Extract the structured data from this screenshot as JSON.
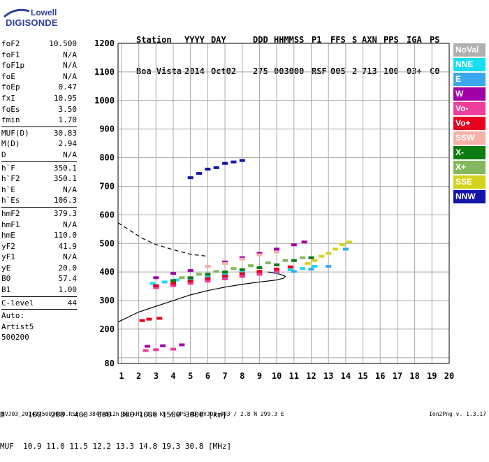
{
  "logo": {
    "line1": "Lowell",
    "line2": "DIGISONDE"
  },
  "header": {
    "labels": [
      "Station",
      "YYYY",
      "DAY",
      "DDD",
      "HHMMSS",
      "P1",
      "FFS",
      "S",
      "AXN",
      "PPS",
      "IGA",
      "PS"
    ],
    "values": [
      "Boa Vista",
      "2014",
      "Oct02",
      "275",
      "003000",
      "RSF",
      "005",
      "2",
      "713",
      "100",
      "03+",
      "C0"
    ]
  },
  "params": {
    "group1": [
      {
        "name": "foF2",
        "value": "10.500"
      },
      {
        "name": "foF1",
        "value": "N/A"
      },
      {
        "name": "foF1p",
        "value": "N/A"
      },
      {
        "name": "foE",
        "value": "N/A"
      },
      {
        "name": "foEp",
        "value": "0.47"
      },
      {
        "name": "fxI",
        "value": "10.95"
      },
      {
        "name": "foEs",
        "value": "3.50"
      },
      {
        "name": "fmin",
        "value": "1.70"
      }
    ],
    "group2": [
      {
        "name": "MUF(D)",
        "value": "30.83"
      },
      {
        "name": "M(D)",
        "value": "2.94"
      },
      {
        "name": "D",
        "value": "N/A"
      }
    ],
    "group3": [
      {
        "name": "h`F",
        "value": "350.1"
      },
      {
        "name": "h`F2",
        "value": "350.1"
      },
      {
        "name": "h`E",
        "value": "N/A"
      },
      {
        "name": "h`Es",
        "value": "106.3"
      }
    ],
    "group4": [
      {
        "name": "hmF2",
        "value": "379.3"
      },
      {
        "name": "hmF1",
        "value": "N/A"
      },
      {
        "name": "hmE",
        "value": "110.0"
      },
      {
        "name": "yF2",
        "value": "41.9"
      },
      {
        "name": "yF1",
        "value": "N/A"
      },
      {
        "name": "yE",
        "value": "20.0"
      },
      {
        "name": "B0",
        "value": "57.4"
      },
      {
        "name": "B1",
        "value": "1.00"
      }
    ],
    "group5": [
      {
        "name": "C-level",
        "value": "44"
      }
    ],
    "footer_lines": [
      "Auto:",
      "Artist5",
      "500200"
    ]
  },
  "legend": [
    {
      "label": "NoVal",
      "color": "#b0b0b0"
    },
    {
      "label": "NNE",
      "color": "#17dcf2"
    },
    {
      "label": "E",
      "color": "#3aa8ee"
    },
    {
      "label": "W",
      "color": "#a000a8"
    },
    {
      "label": "Vo-",
      "color": "#ee3d9c"
    },
    {
      "label": "Vo+",
      "color": "#e8001e"
    },
    {
      "label": "SSW",
      "color": "#f5b0a8"
    },
    {
      "label": "X-",
      "color": "#0c7c10"
    },
    {
      "label": "X+",
      "color": "#84b85c"
    },
    {
      "label": "SSE",
      "color": "#d4d21c"
    },
    {
      "label": "NNW",
      "color": "#1414a8"
    }
  ],
  "bottom": {
    "d_line": "D     100  200  400  600  800 1000 1500 3000 [km]",
    "muf_line": "MUF  10.9 11.0 11.5 12.2 13.3 14.8 19.3 30.8 [MHz]"
  },
  "footer": {
    "left": "BVJ03_2014275003000.RSF / 384fx512h 50 kHz 2.5 km / DPS-4D BVJ03 003 / 2.8 N 299.3 E",
    "right": "Ion2Png v. 1.3.17"
  },
  "chart_data": {
    "type": "scatter",
    "xlim": [
      0.8,
      20.0
    ],
    "ylim": [
      80,
      1200
    ],
    "x_ticks": [
      1,
      2,
      3,
      4,
      5,
      6,
      7,
      8,
      9,
      10,
      11,
      12,
      13,
      14,
      15,
      16,
      17,
      18,
      19,
      20
    ],
    "y_ticks": [
      80,
      100,
      200,
      300,
      400,
      500,
      600,
      700,
      800,
      900,
      1000,
      1100,
      1200
    ],
    "y_tick_labels": [
      "80",
      "",
      "200",
      "300",
      "400",
      "500",
      "600",
      "700",
      "800",
      "900",
      "1000",
      "1100",
      "1200"
    ],
    "grid": true,
    "series": [
      {
        "name": "NNE",
        "color": "#17dcf2",
        "points": [
          [
            2.8,
            360
          ],
          [
            3.5,
            365
          ],
          [
            4.2,
            372
          ],
          [
            5,
            378
          ],
          [
            6,
            385
          ],
          [
            7,
            392
          ],
          [
            8,
            398
          ],
          [
            9,
            402
          ],
          [
            10,
            405
          ],
          [
            10.8,
            408
          ],
          [
            11.5,
            412
          ],
          [
            12.2,
            420
          ]
        ]
      },
      {
        "name": "E",
        "color": "#3aa8ee",
        "points": [
          [
            3,
            350
          ],
          [
            4,
            360
          ],
          [
            5,
            368
          ],
          [
            6,
            376
          ],
          [
            7,
            384
          ],
          [
            8,
            390
          ],
          [
            9,
            395
          ],
          [
            10,
            398
          ],
          [
            11,
            402
          ],
          [
            12,
            410
          ],
          [
            13,
            420
          ],
          [
            14,
            480
          ]
        ]
      },
      {
        "name": "W",
        "color": "#a000a8",
        "points": [
          [
            3,
            380
          ],
          [
            4,
            395
          ],
          [
            5,
            405
          ],
          [
            6,
            420
          ],
          [
            7,
            435
          ],
          [
            8,
            450
          ],
          [
            9,
            465
          ],
          [
            10,
            480
          ],
          [
            11,
            495
          ],
          [
            11.6,
            505
          ],
          [
            2.5,
            140
          ],
          [
            3.4,
            142
          ],
          [
            4.5,
            145
          ]
        ]
      },
      {
        "name": "Vo-",
        "color": "#ee3d9c",
        "points": [
          [
            3,
            345
          ],
          [
            4,
            352
          ],
          [
            5,
            360
          ],
          [
            6,
            368
          ],
          [
            7,
            376
          ],
          [
            8,
            384
          ],
          [
            9,
            392
          ],
          [
            10,
            400
          ],
          [
            2.4,
            125
          ],
          [
            3,
            128
          ],
          [
            4,
            130
          ]
        ]
      },
      {
        "name": "Vo+",
        "color": "#e8001e",
        "points": [
          [
            3,
            352
          ],
          [
            4,
            360
          ],
          [
            5,
            368
          ],
          [
            6,
            377
          ],
          [
            7,
            386
          ],
          [
            8,
            394
          ],
          [
            9,
            402
          ],
          [
            10,
            410
          ],
          [
            10.8,
            418
          ],
          [
            2.2,
            230
          ],
          [
            2.6,
            235
          ],
          [
            3.2,
            238
          ]
        ]
      },
      {
        "name": "SSW",
        "color": "#f5b0a8",
        "points": [
          [
            6,
            420
          ],
          [
            7,
            430
          ],
          [
            8,
            445
          ],
          [
            9,
            460
          ],
          [
            10,
            470
          ]
        ]
      },
      {
        "name": "X-",
        "color": "#0c7c10",
        "points": [
          [
            4,
            370
          ],
          [
            5,
            380
          ],
          [
            6,
            392
          ],
          [
            7,
            400
          ],
          [
            8,
            408
          ],
          [
            9,
            415
          ],
          [
            10,
            425
          ],
          [
            11,
            440
          ],
          [
            12,
            450
          ]
        ]
      },
      {
        "name": "X+",
        "color": "#84b85c",
        "points": [
          [
            4.5,
            380
          ],
          [
            5.5,
            392
          ],
          [
            6.5,
            402
          ],
          [
            7.5,
            412
          ],
          [
            8.5,
            422
          ],
          [
            9.5,
            432
          ],
          [
            10.5,
            440
          ],
          [
            11.5,
            450
          ]
        ]
      },
      {
        "name": "SSE",
        "color": "#d4d21c",
        "points": [
          [
            11.8,
            430
          ],
          [
            12.2,
            440
          ],
          [
            12.6,
            455
          ],
          [
            13,
            465
          ],
          [
            13.4,
            480
          ],
          [
            13.8,
            495
          ],
          [
            14.2,
            505
          ]
        ]
      },
      {
        "name": "NNW",
        "color": "#1414a8",
        "points": [
          [
            5,
            730
          ],
          [
            5.5,
            745
          ],
          [
            6,
            760
          ],
          [
            6.5,
            765
          ],
          [
            7,
            780
          ],
          [
            7.5,
            785
          ],
          [
            8,
            790
          ]
        ]
      }
    ],
    "profile_solid": [
      [
        0.8,
        225
      ],
      [
        2,
        260
      ],
      [
        3,
        280
      ],
      [
        4,
        300
      ],
      [
        5,
        320
      ],
      [
        6,
        335
      ],
      [
        7,
        347
      ],
      [
        8,
        357
      ],
      [
        9,
        365
      ],
      [
        10,
        372
      ],
      [
        10.4,
        378
      ],
      [
        10.5,
        385
      ],
      [
        10.2,
        392
      ],
      [
        9.5,
        400
      ]
    ],
    "profile_dashed": [
      [
        0.8,
        572
      ],
      [
        1.5,
        545
      ],
      [
        2.2,
        518
      ],
      [
        3,
        496
      ],
      [
        4,
        478
      ],
      [
        5,
        462
      ],
      [
        6,
        455
      ]
    ]
  }
}
